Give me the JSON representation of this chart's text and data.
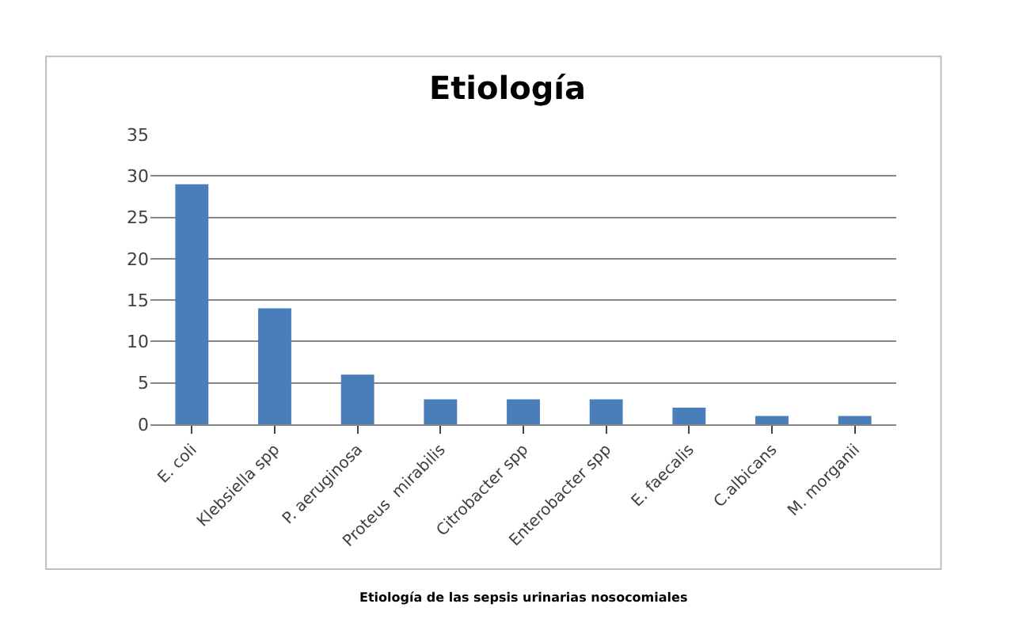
{
  "chart_data": {
    "type": "bar",
    "title": "Etiología",
    "categories": [
      "E. coli",
      "Klebsiella spp",
      "P. aeruginosa",
      "Proteus  mirabilis",
      "Citrobacter spp",
      "Enterobacter spp",
      "E. faecalis",
      "C.albicans",
      "M. morganii"
    ],
    "values": [
      29,
      14,
      6,
      3,
      3,
      3,
      2,
      1,
      1
    ],
    "color": "#4a7ebb",
    "ylim": [
      0,
      35
    ],
    "yticks": [
      0,
      5,
      10,
      15,
      20,
      25,
      30,
      35
    ],
    "grid": "y",
    "annotations": [
      "Etiología de las sepsis urinarias nosocomiales"
    ]
  }
}
